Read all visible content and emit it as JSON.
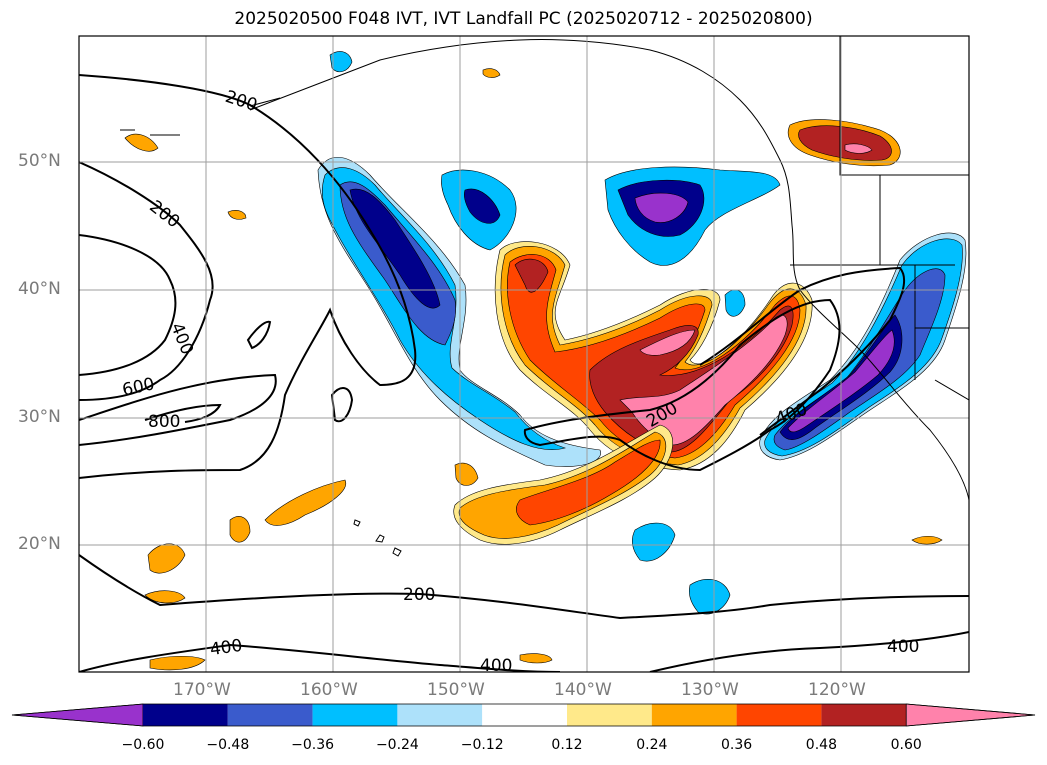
{
  "title": "2025020500 F048 IVT, IVT Landfall PC (2025020712 - 2025020800)",
  "map": {
    "lat_labels": [
      "50°N",
      "40°N",
      "30°N",
      "20°N"
    ],
    "lon_labels": [
      "170°W",
      "160°W",
      "150°W",
      "140°W",
      "130°W",
      "120°W"
    ],
    "contour_labels": [
      "200",
      "200",
      "400",
      "600",
      "800",
      "200",
      "400",
      "200",
      "400",
      "400",
      "400"
    ]
  },
  "colorbar": {
    "colors": [
      "#9932CC",
      "#00008B",
      "#3A5BCC",
      "#00BFFF",
      "#ADE1FA",
      "#FFFFFF",
      "#FFE98A",
      "#FFA500",
      "#FF4500",
      "#B22222",
      "#FF82AB"
    ],
    "tick_labels": [
      "−0.60",
      "−0.48",
      "−0.36",
      "−0.24",
      "−0.12",
      "0.12",
      "0.24",
      "0.36",
      "0.48",
      "0.60"
    ]
  }
}
